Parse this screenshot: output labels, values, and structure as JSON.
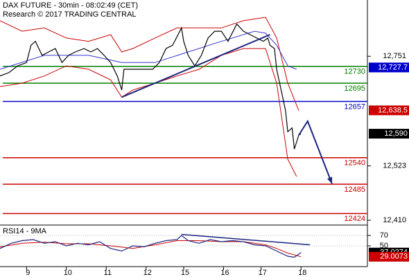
{
  "chart_data": [
    {
      "type": "line",
      "title": "DAX FUTURE - 30min - 08:02:49 (CET)",
      "subtitle": "Research © 2017 TRADING CENTRAL",
      "xlim": [
        0,
        166
      ],
      "xticks": [
        {
          "value": 12,
          "label": "9"
        },
        {
          "value": 30,
          "label": "10"
        },
        {
          "value": 48,
          "label": "11"
        },
        {
          "value": 66,
          "label": "12"
        },
        {
          "value": 83,
          "label": "15"
        },
        {
          "value": 101,
          "label": "16"
        },
        {
          "value": 118,
          "label": "17"
        },
        {
          "value": 136,
          "label": "18"
        }
      ],
      "ylim": [
        12400,
        12868
      ],
      "yticks": [
        {
          "value": 12751,
          "label": "12,751"
        },
        {
          "value": 12523,
          "label": "12,523"
        },
        {
          "value": 12410,
          "label": "12,410"
        }
      ],
      "series": [
        {
          "color": "#cc0000",
          "x": [
            0,
            10,
            20,
            30,
            40,
            50,
            55,
            60,
            70,
            80,
            90,
            100,
            110,
            120,
            125,
            130,
            135
          ],
          "values": [
            12825,
            12803,
            12810,
            12789,
            12782,
            12796,
            12760,
            12767,
            12789,
            12810,
            12810,
            12810,
            12825,
            12832,
            12789,
            12695,
            12638
          ]
        },
        {
          "color": "#cc0000",
          "x": [
            0,
            10,
            20,
            30,
            40,
            50,
            55,
            60,
            70,
            80,
            90,
            100,
            110,
            120,
            125,
            130,
            134
          ],
          "values": [
            12688,
            12695,
            12710,
            12731,
            12724,
            12702,
            12666,
            12681,
            12695,
            12710,
            12724,
            12753,
            12767,
            12767,
            12695,
            12537,
            12501
          ]
        },
        {
          "color": "#3333cc",
          "x": [
            0,
            20,
            40,
            55,
            70,
            85,
            100,
            115,
            120,
            125,
            130,
            134
          ],
          "values": [
            12724,
            12753,
            12753,
            12738,
            12738,
            12760,
            12782,
            12803,
            12799,
            12774,
            12731,
            12724
          ]
        },
        {
          "color": "#000000",
          "x": [
            0,
            4,
            8,
            12,
            14,
            16,
            19,
            22,
            25,
            28,
            31,
            34,
            38,
            41,
            44,
            47,
            50,
            53,
            55,
            56,
            60,
            63,
            66,
            69,
            72,
            75,
            78,
            82,
            83,
            85,
            88,
            91,
            94,
            97,
            100,
            103,
            107,
            110,
            113,
            116,
            119,
            121,
            122,
            124,
            125,
            127,
            129,
            130,
            132,
            133,
            135,
            136
          ],
          "values": [
            12710,
            12717,
            12731,
            12738,
            12774,
            12782,
            12753,
            12760,
            12767,
            12738,
            12753,
            12760,
            12767,
            12760,
            12767,
            12753,
            12738,
            12710,
            12681,
            12724,
            12724,
            12724,
            12724,
            12724,
            12738,
            12767,
            12774,
            12810,
            12782,
            12753,
            12731,
            12753,
            12789,
            12803,
            12803,
            12782,
            12818,
            12803,
            12796,
            12789,
            12782,
            12789,
            12774,
            12767,
            12724,
            12681,
            12638,
            12594,
            12602,
            12558,
            12587,
            12590
          ]
        }
      ],
      "levels": [
        {
          "value": 12730,
          "color": "#008000"
        },
        {
          "value": 12695,
          "color": "#008000"
        },
        {
          "value": 12657,
          "color": "#0000cc"
        },
        {
          "value": 12540,
          "color": "#cc0000"
        },
        {
          "value": 12485,
          "color": "#cc0000"
        },
        {
          "value": 12424,
          "color": "#cc0000"
        }
      ],
      "trendline": {
        "color": "#1a237e",
        "x": [
          55,
          122
        ],
        "values": [
          12666,
          12796
        ]
      },
      "forecast": {
        "color": "#1a237e",
        "x": [
          135,
          139,
          150
        ],
        "values": [
          12587,
          12616,
          12486
        ]
      },
      "value_boxes": [
        {
          "value": 12727.7,
          "label": "12,727.7",
          "color": "#0000cc"
        },
        {
          "value": 12638.5,
          "label": "12,638.5",
          "color": "#cc0000"
        },
        {
          "value": 12590,
          "label": "12,590",
          "color": "#000000"
        }
      ]
    },
    {
      "type": "line",
      "title": "RSI14 - 9MA",
      "ylim": [
        10,
        86
      ],
      "yticks": [
        70,
        50
      ],
      "series": [
        {
          "color": "#cc0000",
          "x": [
            0,
            10,
            20,
            30,
            40,
            50,
            60,
            70,
            80,
            90,
            100,
            110,
            120,
            125,
            130,
            136
          ],
          "values": [
            48,
            55,
            57,
            54,
            54,
            50,
            45,
            52,
            60,
            60,
            58,
            58,
            52,
            45,
            36,
            29.0073
          ]
        },
        {
          "color": "#1a237e",
          "x": [
            0,
            5,
            10,
            15,
            20,
            25,
            30,
            35,
            40,
            45,
            50,
            55,
            60,
            65,
            70,
            75,
            80,
            82,
            85,
            90,
            95,
            100,
            105,
            110,
            115,
            120,
            125,
            130,
            133,
            136
          ],
          "values": [
            45,
            55,
            60,
            62,
            55,
            58,
            50,
            55,
            52,
            58,
            45,
            40,
            50,
            48,
            55,
            60,
            62,
            70,
            60,
            55,
            62,
            58,
            60,
            58,
            52,
            50,
            40,
            30,
            28,
            37.0274
          ]
        }
      ],
      "trendline": {
        "color": "#1a237e",
        "x": [
          82,
          140
        ],
        "values": [
          72,
          52
        ]
      },
      "value_boxes": [
        {
          "value": 37.0274,
          "label": "37.0274",
          "color": "#000000"
        },
        {
          "value": 29.0073,
          "label": "29.0073",
          "color": "#cc0000"
        }
      ]
    }
  ]
}
